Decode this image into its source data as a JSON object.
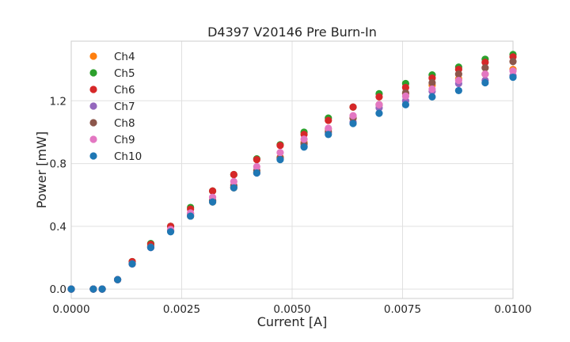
{
  "chart_data": {
    "type": "scatter",
    "title": "D4397 V20146 Pre Burn-In",
    "xlabel": "Current [A]",
    "ylabel": "Power [mW]",
    "xlim": [
      0.0,
      0.01
    ],
    "ylim": [
      -0.06,
      1.58
    ],
    "xticks": [
      0.0,
      0.0025,
      0.005,
      0.0075,
      0.01
    ],
    "xtick_labels": [
      "0.0000",
      "0.0025",
      "0.0050",
      "0.0075",
      "0.0100"
    ],
    "yticks": [
      0.0,
      0.4,
      0.8,
      1.2
    ],
    "ytick_labels": [
      "0.0",
      "0.4",
      "0.8",
      "1.2"
    ],
    "grid": true,
    "legend_position": "top-left",
    "x": [
      0.0,
      0.0005,
      0.0007,
      0.00105,
      0.00138,
      0.0018,
      0.00225,
      0.0027,
      0.0032,
      0.00368,
      0.0042,
      0.00473,
      0.00527,
      0.00582,
      0.00638,
      0.00697,
      0.00757,
      0.00817,
      0.00877,
      0.00937,
      0.01
    ],
    "series": [
      {
        "name": "Ch4",
        "color": "#ff7f0e",
        "values": [
          0.0,
          0.0,
          0.0,
          0.06,
          0.165,
          0.275,
          0.375,
          0.465,
          0.555,
          0.645,
          0.745,
          0.84,
          0.935,
          1.02,
          1.09,
          1.175,
          1.245,
          1.3,
          1.34,
          1.37,
          1.4
        ]
      },
      {
        "name": "Ch5",
        "color": "#2ca02c",
        "values": [
          0.0,
          0.0,
          0.0,
          0.06,
          0.175,
          0.29,
          0.4,
          0.52,
          0.625,
          0.73,
          0.83,
          0.92,
          1.0,
          1.09,
          1.16,
          1.245,
          1.31,
          1.365,
          1.415,
          1.465,
          1.495
        ]
      },
      {
        "name": "Ch6",
        "color": "#d62728",
        "values": [
          0.0,
          0.0,
          0.0,
          0.06,
          0.175,
          0.285,
          0.4,
          0.51,
          0.625,
          0.73,
          0.825,
          0.915,
          0.985,
          1.075,
          1.16,
          1.225,
          1.285,
          1.345,
          1.4,
          1.445,
          1.48
        ]
      },
      {
        "name": "Ch7",
        "color": "#9467bd",
        "values": [
          0.0,
          0.0,
          0.0,
          0.06,
          0.16,
          0.265,
          0.37,
          0.47,
          0.565,
          0.65,
          0.74,
          0.83,
          0.91,
          0.995,
          1.065,
          1.155,
          1.2,
          1.26,
          1.31,
          1.33,
          1.36
        ]
      },
      {
        "name": "Ch8",
        "color": "#8c564b",
        "values": [
          0.0,
          0.0,
          0.0,
          0.06,
          0.16,
          0.27,
          0.37,
          0.48,
          0.565,
          0.66,
          0.755,
          0.835,
          0.925,
          1.005,
          1.09,
          1.175,
          1.25,
          1.315,
          1.37,
          1.41,
          1.45
        ]
      },
      {
        "name": "Ch9",
        "color": "#e377c2",
        "values": [
          0.0,
          0.0,
          0.0,
          0.06,
          0.16,
          0.265,
          0.38,
          0.485,
          0.585,
          0.685,
          0.78,
          0.87,
          0.955,
          1.025,
          1.105,
          1.175,
          1.23,
          1.275,
          1.33,
          1.37,
          1.39
        ]
      },
      {
        "name": "Ch10",
        "color": "#1f77b4",
        "values": [
          0.0,
          0.0,
          0.0,
          0.06,
          0.16,
          0.265,
          0.365,
          0.465,
          0.555,
          0.645,
          0.74,
          0.825,
          0.905,
          0.985,
          1.055,
          1.12,
          1.175,
          1.225,
          1.265,
          1.315,
          1.35
        ]
      }
    ]
  }
}
